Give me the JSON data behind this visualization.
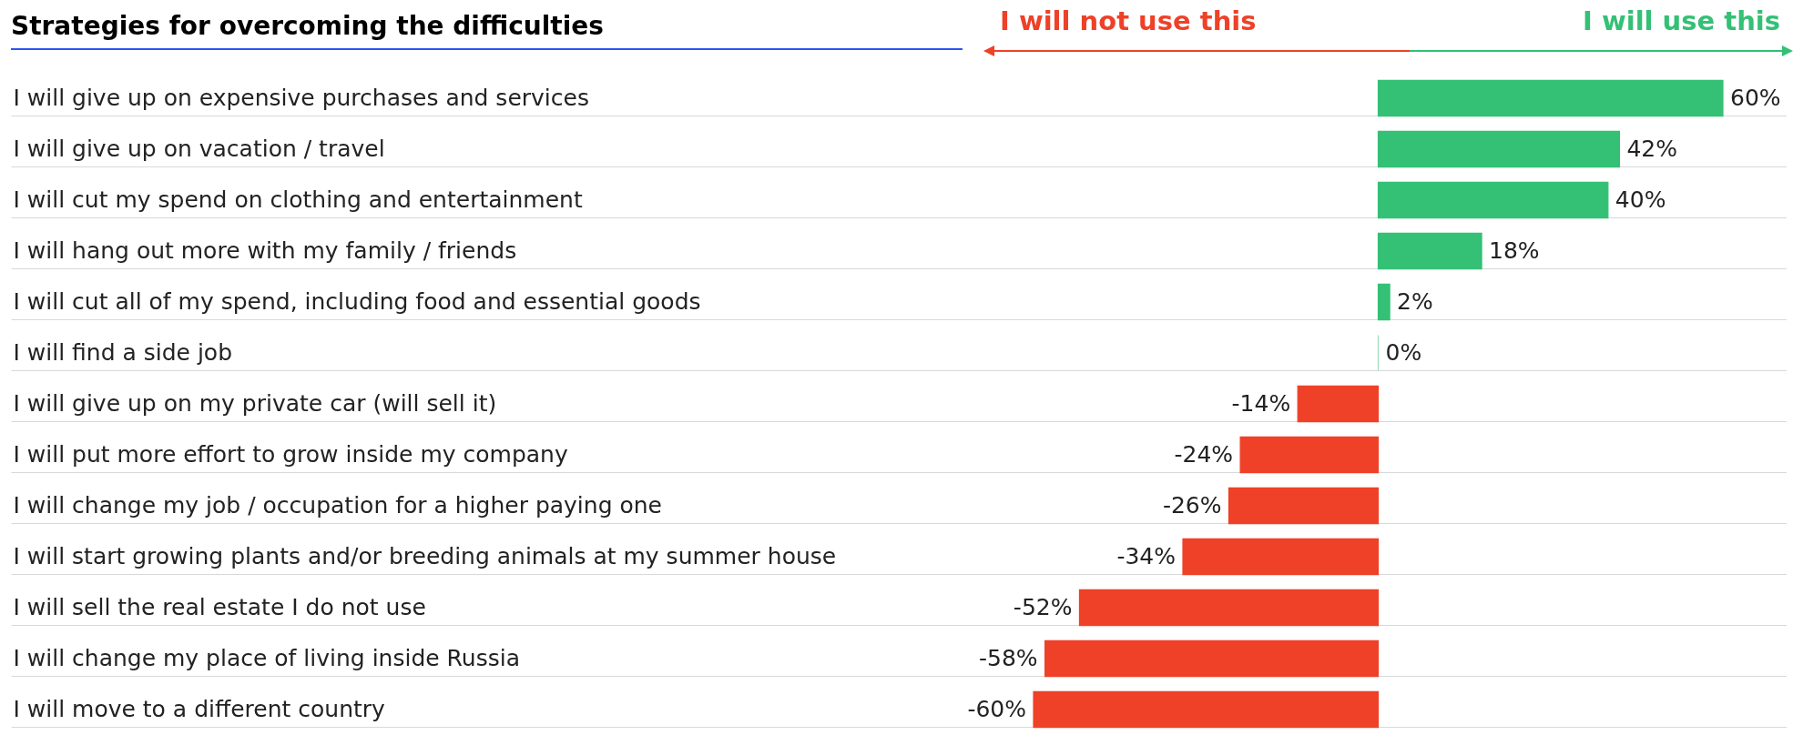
{
  "chart_data": {
    "type": "bar",
    "orientation": "horizontal",
    "title": "Strategies for overcoming the difficulties",
    "annotations": [
      "I will not use this",
      "I will use this"
    ],
    "categories": [
      "I will give up on expensive purchases and services",
      "I will give up on vacation / travel",
      "I will cut my spend on clothing and entertainment",
      "I will hang out more with my family / friends",
      "I will cut all of my spend, including food and essential goods",
      "I will find a side job",
      "I will give up on my private car (will sell it)",
      "I will put more effort to grow inside my company",
      "I will change my job / occupation for a higher paying one",
      "I will start growing plants and/or breeding animals at my summer house",
      "I will sell the real estate I do not use",
      "I will change my place of living inside Russia",
      "I will move to a different country"
    ],
    "values": [
      60,
      42,
      40,
      18,
      2,
      0,
      -14,
      -24,
      -26,
      -34,
      -52,
      -58,
      -60
    ],
    "value_labels": [
      "60%",
      "42%",
      "40%",
      "18%",
      "2%",
      "0%",
      "-14%",
      "-24%",
      "-26%",
      "-34%",
      "-52%",
      "-58%",
      "-60%"
    ],
    "colors": [
      "#34c075",
      "#34c075",
      "#34c075",
      "#34c075",
      "#34c075",
      "#9fdcb9",
      "#ee4128",
      "#ee4128",
      "#ee4128",
      "#ee4128",
      "#ee4128",
      "#ee4128",
      "#ee4128"
    ],
    "grid": "y"
  }
}
